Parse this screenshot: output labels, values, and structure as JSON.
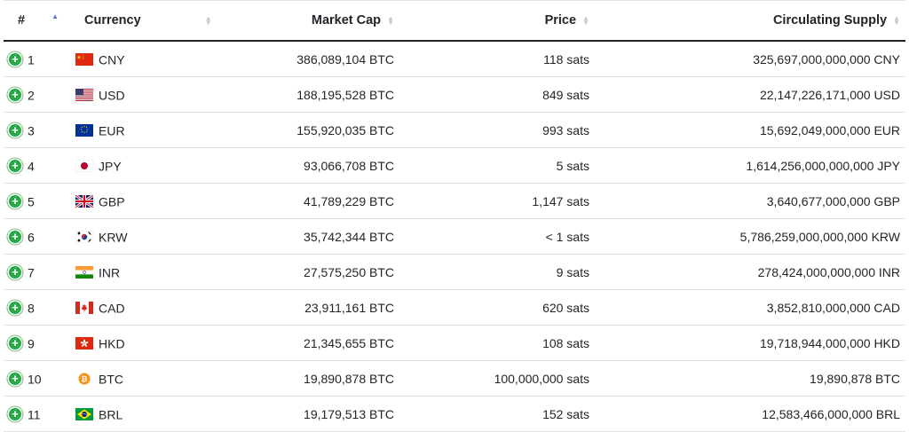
{
  "headers": {
    "rank": "#",
    "currency": "Currency",
    "market_cap": "Market Cap",
    "price": "Price",
    "supply": "Circulating Supply"
  },
  "rows": [
    {
      "rank": "1",
      "flag": "cn-flag-icon",
      "code": "CNY",
      "market_cap": "386,089,104 BTC",
      "price": "118 sats",
      "supply": "325,697,000,000,000 CNY"
    },
    {
      "rank": "2",
      "flag": "us-flag-icon",
      "code": "USD",
      "market_cap": "188,195,528 BTC",
      "price": "849 sats",
      "supply": "22,147,226,171,000 USD"
    },
    {
      "rank": "3",
      "flag": "eu-flag-icon",
      "code": "EUR",
      "market_cap": "155,920,035 BTC",
      "price": "993 sats",
      "supply": "15,692,049,000,000 EUR"
    },
    {
      "rank": "4",
      "flag": "jp-flag-icon",
      "code": "JPY",
      "market_cap": "93,066,708 BTC",
      "price": "5 sats",
      "supply": "1,614,256,000,000,000 JPY"
    },
    {
      "rank": "5",
      "flag": "gb-flag-icon",
      "code": "GBP",
      "market_cap": "41,789,229 BTC",
      "price": "1,147 sats",
      "supply": "3,640,677,000,000 GBP"
    },
    {
      "rank": "6",
      "flag": "kr-flag-icon",
      "code": "KRW",
      "market_cap": "35,742,344 BTC",
      "price": "< 1 sats",
      "supply": "5,786,259,000,000,000 KRW"
    },
    {
      "rank": "7",
      "flag": "in-flag-icon",
      "code": "INR",
      "market_cap": "27,575,250 BTC",
      "price": "9 sats",
      "supply": "278,424,000,000,000 INR"
    },
    {
      "rank": "8",
      "flag": "ca-flag-icon",
      "code": "CAD",
      "market_cap": "23,911,161 BTC",
      "price": "620 sats",
      "supply": "3,852,810,000,000 CAD"
    },
    {
      "rank": "9",
      "flag": "hk-flag-icon",
      "code": "HKD",
      "market_cap": "21,345,655 BTC",
      "price": "108 sats",
      "supply": "19,718,944,000,000 HKD"
    },
    {
      "rank": "10",
      "flag": "bitcoin-icon",
      "code": "BTC",
      "market_cap": "19,890,878 BTC",
      "price": "100,000,000 sats",
      "supply": "19,890,878 BTC"
    },
    {
      "rank": "11",
      "flag": "br-flag-icon",
      "code": "BRL",
      "market_cap": "19,179,513 BTC",
      "price": "152 sats",
      "supply": "12,583,466,000,000 BRL"
    }
  ],
  "colors": {
    "expand_button": "#28a745",
    "sort_active": "#5b6fd8",
    "row_border": "#dee2e6"
  }
}
